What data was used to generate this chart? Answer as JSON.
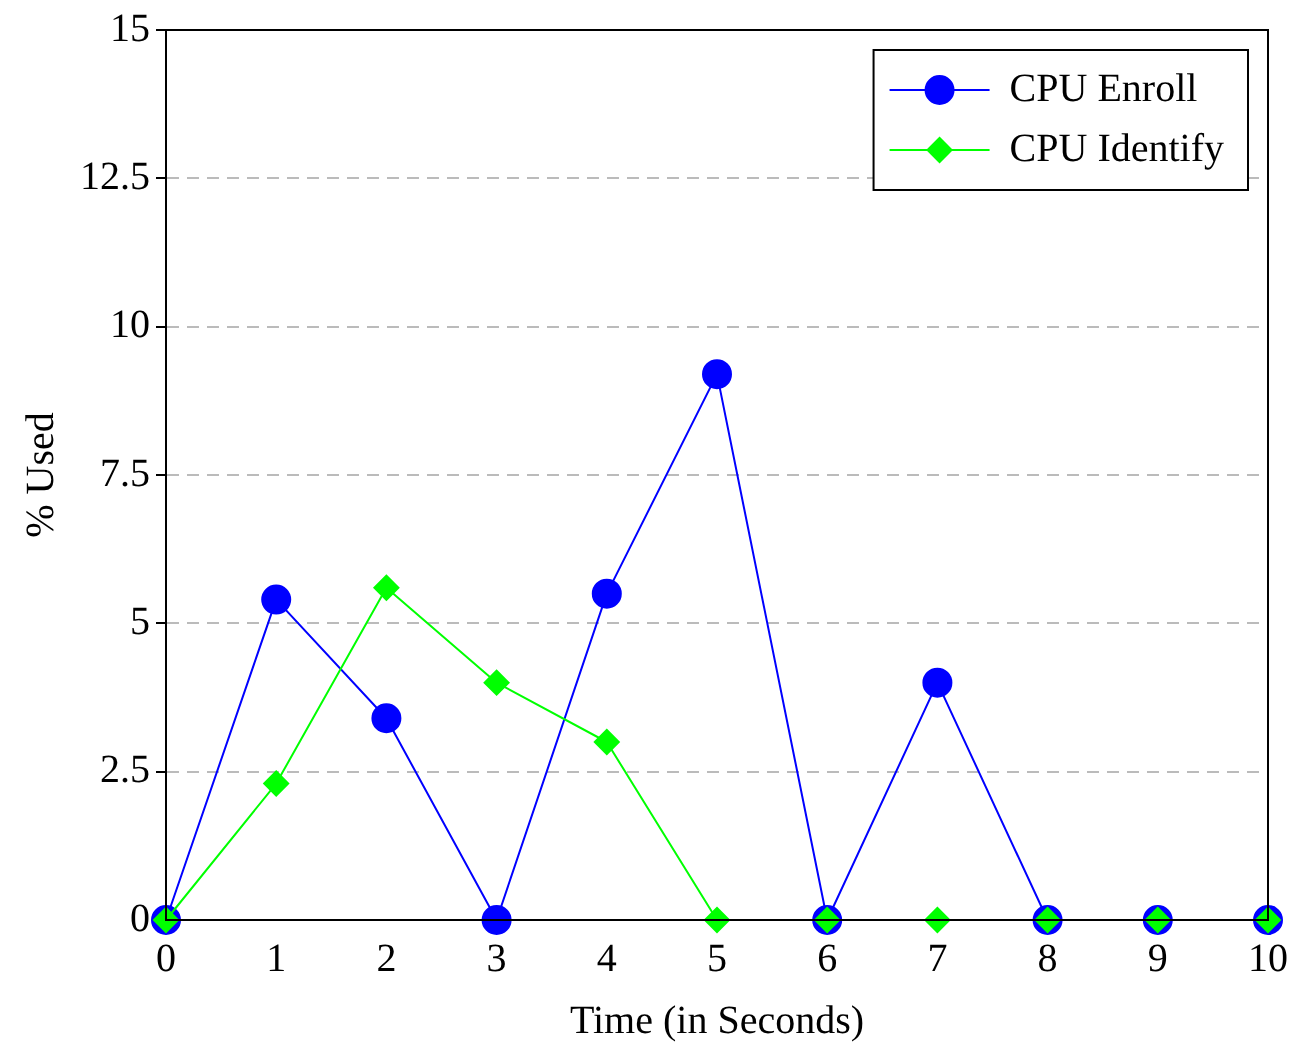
{
  "chart_data": {
    "type": "line",
    "xlabel": "Time (in Seconds)",
    "ylabel": "% Used",
    "x": [
      0,
      1,
      2,
      3,
      4,
      5,
      6,
      7,
      8,
      9,
      10
    ],
    "series": [
      {
        "name": "CPU Enroll",
        "color": "#0000ff",
        "marker": "circle",
        "values": [
          0,
          5.4,
          3.4,
          0,
          5.5,
          9.2,
          0,
          4.0,
          0,
          0,
          0
        ]
      },
      {
        "name": "CPU Identify",
        "color": "#00ff00",
        "marker": "diamond",
        "values": [
          0,
          2.3,
          5.6,
          4.0,
          3.0,
          0,
          0,
          0,
          0,
          0,
          0
        ]
      }
    ],
    "xlim": [
      0,
      10
    ],
    "xticks": [
      0,
      1,
      2,
      3,
      4,
      5,
      6,
      7,
      8,
      9,
      10
    ],
    "ylim": [
      0,
      15
    ],
    "yticks": [
      0,
      2.5,
      5,
      7.5,
      10,
      12.5,
      15
    ],
    "grid": "y",
    "legend": "top right",
    "line_style": "solid"
  }
}
